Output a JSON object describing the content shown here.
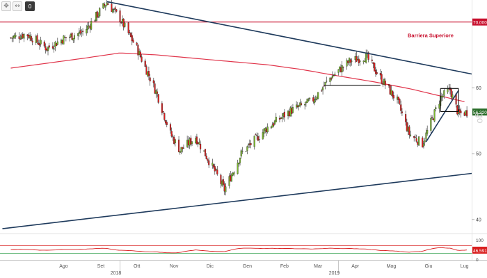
{
  "toolbar": {
    "zoom_icon": "crosshair-icon",
    "reset_label": "0"
  },
  "annotation": "Barriera Superiore",
  "watermark": "go",
  "price_badges": {
    "resistance": "70,0000",
    "last": "56,3200",
    "osc_last": "46,5912"
  },
  "colors": {
    "bull": "#7ab52e",
    "bear": "#d91e1e",
    "ma": "#e0344a",
    "trend": "#1e3a5c",
    "level": "#c8102e",
    "osc_line": "#d91e1e",
    "osc_upper": "#d91e1e",
    "osc_lower": "#31a14b",
    "badge_last": "#2b6e2b"
  },
  "chart_data": {
    "type": "candlestick",
    "xlabel": "",
    "ylabel": "",
    "x_tick_labels": [
      "Ago",
      "Set",
      "Ott",
      "Nov",
      "Dic",
      "Gen",
      "Feb",
      "Mar",
      "Apr",
      "Mag",
      "Giu",
      "Lug"
    ],
    "year_labels": [
      "2018",
      "2019"
    ],
    "y_tick_labels": [
      "60",
      "50",
      "40"
    ],
    "ylim": [
      38.5,
      72.5
    ],
    "grid": false,
    "price_anchors": [
      [
        "2018-07-02",
        67.6
      ],
      [
        "2018-07-15",
        68.2
      ],
      [
        "2018-08-01",
        66.0
      ],
      [
        "2018-08-15",
        67.5
      ],
      [
        "2018-09-01",
        68.5
      ],
      [
        "2018-09-20",
        73.0
      ],
      [
        "2018-10-01",
        70.5
      ],
      [
        "2018-10-15",
        66.0
      ],
      [
        "2018-11-01",
        59.0
      ],
      [
        "2018-11-12",
        53.0
      ],
      [
        "2018-11-20",
        50.5
      ],
      [
        "2018-12-03",
        52.5
      ],
      [
        "2018-12-20",
        47.0
      ],
      [
        "2018-12-27",
        44.5
      ],
      [
        "2019-01-10",
        50.0
      ],
      [
        "2019-02-01",
        54.0
      ],
      [
        "2019-02-20",
        56.5
      ],
      [
        "2019-03-10",
        58.0
      ],
      [
        "2019-03-25",
        61.5
      ],
      [
        "2019-04-10",
        64.0
      ],
      [
        "2019-04-24",
        64.8
      ],
      [
        "2019-05-06",
        61.5
      ],
      [
        "2019-05-20",
        58.0
      ],
      [
        "2019-05-30",
        53.0
      ],
      [
        "2019-06-10",
        51.5
      ],
      [
        "2019-06-25",
        58.5
      ],
      [
        "2019-07-03",
        59.7
      ],
      [
        "2019-07-10",
        56.0
      ],
      [
        "2019-07-17",
        56.3
      ]
    ],
    "moving_average": [
      [
        "2018-07-02",
        63.0
      ],
      [
        "2018-09-01",
        64.5
      ],
      [
        "2018-10-01",
        65.3
      ],
      [
        "2018-11-01",
        65.0
      ],
      [
        "2018-12-01",
        64.5
      ],
      [
        "2019-01-01",
        64.0
      ],
      [
        "2019-02-01",
        63.5
      ],
      [
        "2019-03-01",
        62.8
      ],
      [
        "2019-04-01",
        61.8
      ],
      [
        "2019-05-01",
        60.9
      ],
      [
        "2019-06-01",
        59.8
      ],
      [
        "2019-07-01",
        58.5
      ],
      [
        "2019-07-17",
        57.8
      ]
    ],
    "trendlines": [
      {
        "name": "",
        "from": [
          "2018-09-20",
          73.1
        ],
        "to": [
          "2019-07-21",
          62.1
        ]
      },
      {
        "name": "",
        "from": [
          "2018-06-25",
          38.6
        ],
        "to": [
          "2019-07-21",
          47.0
        ]
      },
      {
        "name": "",
        "from": [
          "2019-06-13",
          51.8
        ],
        "to": [
          "2019-07-10",
          59.6
        ]
      }
    ],
    "horizontal_levels": [
      {
        "name": "Barriera Superiore",
        "value": 70.0
      },
      {
        "name": "",
        "value": 60.4,
        "from": "2019-03-20",
        "to": "2019-05-06"
      },
      {
        "name": "",
        "value": 59.9,
        "from": "2019-06-25",
        "to": "2019-07-10"
      },
      {
        "name": "",
        "value": 56.4,
        "from": "2019-06-25",
        "to": "2019-07-10"
      }
    ],
    "oscillator": {
      "ylim": [
        0,
        100
      ],
      "y_tick_labels": [
        "100",
        "0"
      ],
      "upper_band": 70,
      "lower_band": 30,
      "last": 46.59
    }
  }
}
